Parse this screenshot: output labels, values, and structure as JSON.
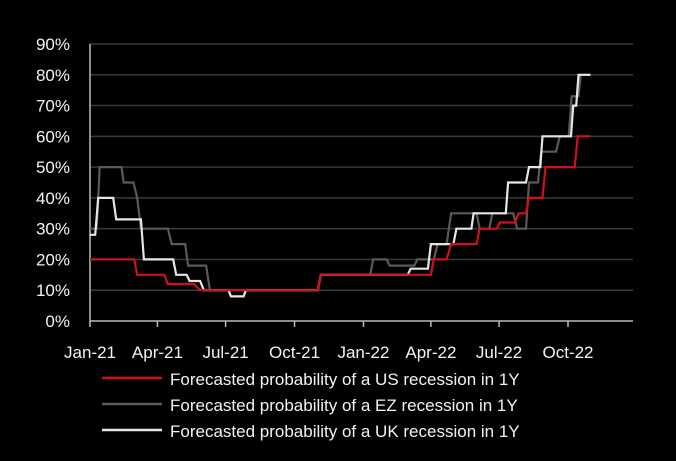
{
  "chart_data": {
    "type": "line",
    "title": "",
    "xlabel": "",
    "ylabel": "",
    "ylim": [
      0,
      90
    ],
    "yticks": [
      "0%",
      "10%",
      "20%",
      "30%",
      "40%",
      "50%",
      "60%",
      "70%",
      "80%",
      "90%"
    ],
    "yvalues": [
      0,
      10,
      20,
      30,
      40,
      50,
      60,
      70,
      80,
      90
    ],
    "xticks": [
      "Jan-21",
      "Apr-21",
      "Jul-21",
      "Oct-21",
      "Jan-22",
      "Apr-22",
      "Jul-22",
      "Oct-22"
    ],
    "xtick_dates": [
      "2021-01-01",
      "2021-04-01",
      "2021-07-01",
      "2021-10-01",
      "2022-01-01",
      "2022-04-01",
      "2022-07-01",
      "2022-10-01"
    ],
    "grid": "horizontal",
    "legend_position": "bottom",
    "series": [
      {
        "name": "Forecasted probability of a US recession in 1Y",
        "color": "#d0101a",
        "step": true,
        "points": [
          [
            "2021-01-01",
            20
          ],
          [
            "2021-03-01",
            20
          ],
          [
            "2021-03-05",
            15
          ],
          [
            "2021-04-10",
            15
          ],
          [
            "2021-04-15",
            12
          ],
          [
            "2021-05-20",
            12
          ],
          [
            "2021-05-28",
            10
          ],
          [
            "2021-11-01",
            10
          ],
          [
            "2021-11-05",
            15
          ],
          [
            "2022-04-01",
            15
          ],
          [
            "2022-04-05",
            20
          ],
          [
            "2022-04-22",
            20
          ],
          [
            "2022-04-28",
            25
          ],
          [
            "2022-06-01",
            25
          ],
          [
            "2022-06-05",
            30
          ],
          [
            "2022-06-28",
            30
          ],
          [
            "2022-07-02",
            32
          ],
          [
            "2022-07-22",
            32
          ],
          [
            "2022-07-27",
            35
          ],
          [
            "2022-08-06",
            35
          ],
          [
            "2022-08-10",
            40
          ],
          [
            "2022-08-28",
            40
          ],
          [
            "2022-09-01",
            50
          ],
          [
            "2022-10-10",
            50
          ],
          [
            "2022-10-14",
            60
          ],
          [
            "2022-10-31",
            60
          ]
        ]
      },
      {
        "name": "Forecasted probability of a EZ recession in 1Y",
        "color": "#5a5a5a",
        "step": true,
        "points": [
          [
            "2021-01-01",
            30
          ],
          [
            "2021-01-10",
            30
          ],
          [
            "2021-01-14",
            50
          ],
          [
            "2021-02-12",
            50
          ],
          [
            "2021-02-15",
            45
          ],
          [
            "2021-02-28",
            45
          ],
          [
            "2021-03-05",
            40
          ],
          [
            "2021-03-10",
            30
          ],
          [
            "2021-04-15",
            30
          ],
          [
            "2021-04-20",
            25
          ],
          [
            "2021-05-08",
            25
          ],
          [
            "2021-05-12",
            18
          ],
          [
            "2021-06-05",
            18
          ],
          [
            "2021-06-10",
            10
          ],
          [
            "2021-11-01",
            10
          ],
          [
            "2021-11-05",
            15
          ],
          [
            "2022-01-10",
            15
          ],
          [
            "2022-01-14",
            20
          ],
          [
            "2022-02-01",
            20
          ],
          [
            "2022-02-05",
            18
          ],
          [
            "2022-03-10",
            18
          ],
          [
            "2022-03-14",
            20
          ],
          [
            "2022-04-05",
            20
          ],
          [
            "2022-04-10",
            25
          ],
          [
            "2022-04-22",
            25
          ],
          [
            "2022-04-28",
            35
          ],
          [
            "2022-06-01",
            35
          ],
          [
            "2022-06-05",
            30
          ],
          [
            "2022-06-18",
            30
          ],
          [
            "2022-06-22",
            35
          ],
          [
            "2022-07-20",
            35
          ],
          [
            "2022-07-25",
            30
          ],
          [
            "2022-08-06",
            30
          ],
          [
            "2022-08-10",
            45
          ],
          [
            "2022-08-22",
            45
          ],
          [
            "2022-08-26",
            55
          ],
          [
            "2022-09-15",
            55
          ],
          [
            "2022-09-20",
            60
          ],
          [
            "2022-10-02",
            60
          ],
          [
            "2022-10-06",
            73
          ],
          [
            "2022-10-15",
            73
          ],
          [
            "2022-10-18",
            80
          ],
          [
            "2022-10-31",
            80
          ]
        ]
      },
      {
        "name": "Forecasted probability of a UK recession in 1Y",
        "color": "#e6e6e6",
        "step": true,
        "points": [
          [
            "2021-01-01",
            28
          ],
          [
            "2021-01-08",
            28
          ],
          [
            "2021-01-12",
            40
          ],
          [
            "2021-02-01",
            40
          ],
          [
            "2021-02-05",
            33
          ],
          [
            "2021-03-10",
            33
          ],
          [
            "2021-03-14",
            20
          ],
          [
            "2021-04-22",
            20
          ],
          [
            "2021-04-26",
            15
          ],
          [
            "2021-05-10",
            15
          ],
          [
            "2021-05-14",
            13
          ],
          [
            "2021-05-28",
            13
          ],
          [
            "2021-06-02",
            10
          ],
          [
            "2021-07-05",
            10
          ],
          [
            "2021-07-08",
            8
          ],
          [
            "2021-07-25",
            8
          ],
          [
            "2021-07-28",
            10
          ],
          [
            "2021-11-01",
            10
          ],
          [
            "2021-11-05",
            15
          ],
          [
            "2022-01-10",
            15
          ],
          [
            "2022-01-14",
            15
          ],
          [
            "2022-03-01",
            15
          ],
          [
            "2022-03-05",
            17
          ],
          [
            "2022-03-28",
            17
          ],
          [
            "2022-04-01",
            25
          ],
          [
            "2022-05-01",
            25
          ],
          [
            "2022-05-05",
            30
          ],
          [
            "2022-05-25",
            30
          ],
          [
            "2022-05-28",
            35
          ],
          [
            "2022-07-10",
            35
          ],
          [
            "2022-07-13",
            45
          ],
          [
            "2022-08-06",
            45
          ],
          [
            "2022-08-10",
            50
          ],
          [
            "2022-08-25",
            50
          ],
          [
            "2022-08-28",
            60
          ],
          [
            "2022-10-05",
            60
          ],
          [
            "2022-10-08",
            70
          ],
          [
            "2022-10-12",
            70
          ],
          [
            "2022-10-15",
            80
          ],
          [
            "2022-10-31",
            80
          ]
        ]
      }
    ]
  }
}
